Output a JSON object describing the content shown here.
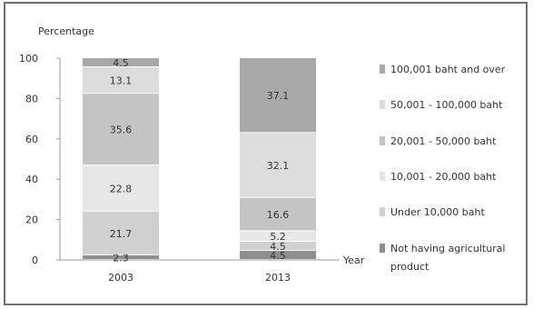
{
  "chart_data": {
    "type": "bar",
    "stacked": true,
    "title": "",
    "ylabel": "Percentage",
    "xlabel": "Year",
    "ylim": [
      0,
      100
    ],
    "yticks": [
      0,
      20,
      40,
      60,
      80,
      100
    ],
    "categories": [
      "2003",
      "2013"
    ],
    "legend_position": "right",
    "series": [
      {
        "name": "Not having agricultural product",
        "values": [
          2.3,
          4.5
        ],
        "color": "#8e8e8e"
      },
      {
        "name": "Under    10,000 baht",
        "values": [
          21.7,
          4.5
        ],
        "color": "#d0d0d0"
      },
      {
        "name": "10,001 - 20,000 baht",
        "values": [
          22.8,
          5.2
        ],
        "color": "#e6e6e6"
      },
      {
        "name": "20,001 - 50,000 baht",
        "values": [
          35.6,
          16.6
        ],
        "color": "#c4c4c4"
      },
      {
        "name": "50,001 - 100,000 baht",
        "values": [
          13.1,
          32.1
        ],
        "color": "#dcdcdc"
      },
      {
        "name": "100,001 baht and over",
        "values": [
          4.5,
          37.1
        ],
        "color": "#a8a8a8"
      }
    ]
  }
}
